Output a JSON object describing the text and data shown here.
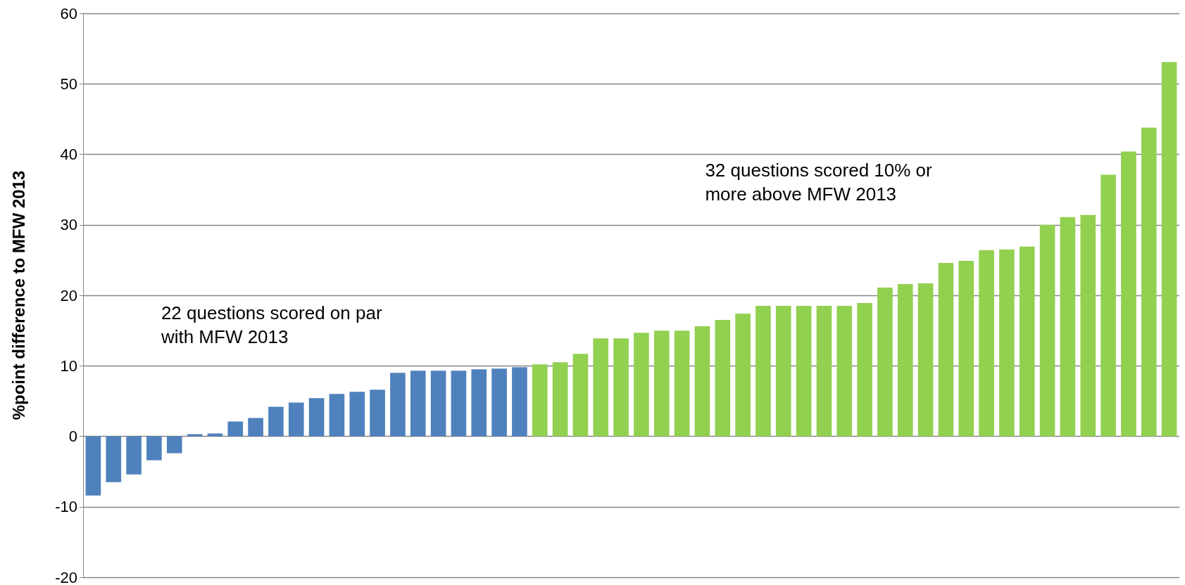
{
  "chart_data": {
    "type": "bar",
    "ylabel": "%point difference to MFW 2013",
    "categories": [
      null,
      null,
      null,
      null,
      null,
      null,
      null,
      null,
      null,
      null,
      null,
      null,
      null,
      null,
      null,
      null,
      null,
      null,
      null,
      null,
      null,
      null,
      null,
      null,
      null,
      null,
      null,
      null,
      null,
      null,
      null,
      null,
      null,
      null,
      null,
      null,
      null,
      null,
      null,
      null,
      null,
      null,
      null,
      null,
      null,
      null,
      null,
      null,
      null,
      null,
      null,
      null,
      null,
      null
    ],
    "values": [
      -8.4,
      -6.5,
      -5.4,
      -3.4,
      -2.4,
      0.3,
      0.4,
      2.1,
      2.6,
      4.2,
      4.8,
      5.4,
      6.0,
      6.3,
      6.6,
      9.0,
      9.3,
      9.3,
      9.3,
      9.5,
      9.6,
      9.8,
      10.2,
      10.5,
      11.7,
      13.9,
      13.9,
      14.7,
      15.0,
      15.0,
      15.6,
      16.5,
      17.4,
      18.5,
      18.5,
      18.5,
      18.5,
      18.5,
      18.9,
      21.1,
      21.6,
      21.7,
      24.6,
      24.9,
      26.4,
      26.5,
      26.9,
      30.0,
      31.1,
      31.4,
      37.1,
      40.4,
      43.8,
      53.1
    ],
    "colors": [
      "#4f81bd",
      "#4f81bd",
      "#4f81bd",
      "#4f81bd",
      "#4f81bd",
      "#4f81bd",
      "#4f81bd",
      "#4f81bd",
      "#4f81bd",
      "#4f81bd",
      "#4f81bd",
      "#4f81bd",
      "#4f81bd",
      "#4f81bd",
      "#4f81bd",
      "#4f81bd",
      "#4f81bd",
      "#4f81bd",
      "#4f81bd",
      "#4f81bd",
      "#4f81bd",
      "#4f81bd",
      "#92d050",
      "#92d050",
      "#92d050",
      "#92d050",
      "#92d050",
      "#92d050",
      "#92d050",
      "#92d050",
      "#92d050",
      "#92d050",
      "#92d050",
      "#92d050",
      "#92d050",
      "#92d050",
      "#92d050",
      "#92d050",
      "#92d050",
      "#92d050",
      "#92d050",
      "#92d050",
      "#92d050",
      "#92d050",
      "#92d050",
      "#92d050",
      "#92d050",
      "#92d050",
      "#92d050",
      "#92d050",
      "#92d050",
      "#92d050",
      "#92d050",
      "#92d050"
    ],
    "annotations": [
      "22 questions scored on par with MFW 2013",
      "32 questions scored 10% or more above MFW 2013"
    ],
    "ylim": [
      -20,
      60
    ],
    "yticks": [
      -20,
      -10,
      0,
      10,
      20,
      30,
      40,
      50,
      60
    ],
    "grid": "y"
  }
}
